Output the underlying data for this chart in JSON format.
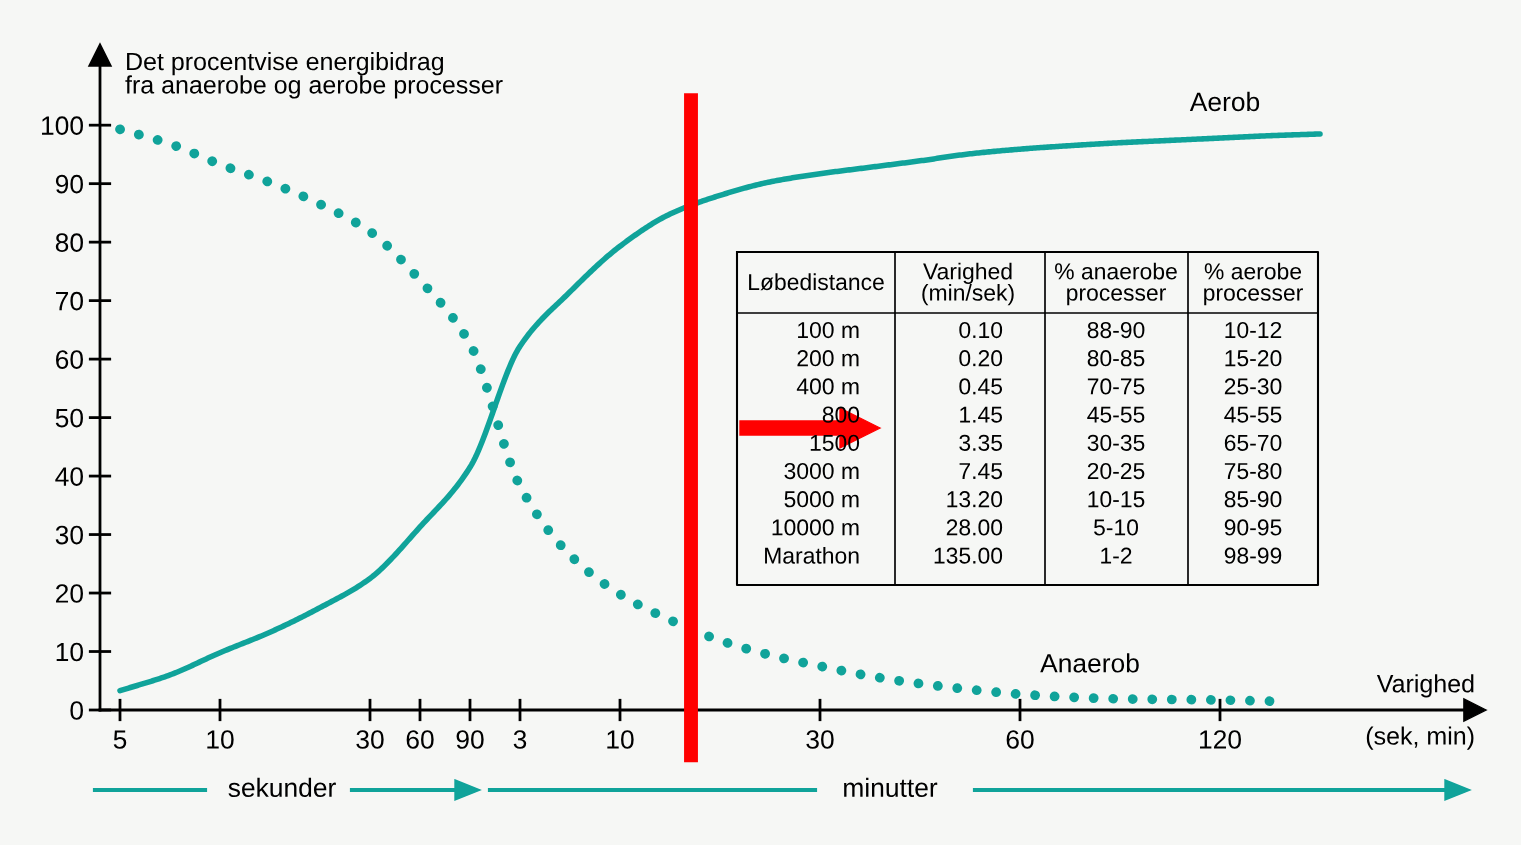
{
  "chart_data": [
    {
      "type": "line",
      "ylabel": "Det procentvise energibidrag\nfra anaerobe og aerobe processer",
      "xlabel": "Varighed\n(sek, min)",
      "ylim": [
        0,
        112
      ],
      "categories": [
        "5",
        null,
        "10",
        null,
        null,
        "30",
        "60",
        "90",
        "3",
        null,
        "10",
        null,
        null,
        null,
        "30",
        null,
        null,
        null,
        "60",
        null,
        null,
        null,
        "120",
        null,
        null
      ],
      "yticks": [
        0,
        10,
        20,
        30,
        40,
        50,
        60,
        70,
        80,
        90,
        100
      ],
      "grid": false,
      "legend": false,
      "marker": "none",
      "series": [
        {
          "name": "Aerob",
          "color": "#10a39a",
          "line_style": "solid",
          "values": [
            3.3,
            6,
            9.8,
            13.3,
            17.5,
            22.5,
            31.3,
            41.5,
            62.2,
            71.5,
            79.3,
            84.8,
            88,
            90.3,
            91.7,
            92.8,
            93.9,
            95.1,
            95.9,
            96.5,
            97,
            97.4,
            97.8,
            98.2,
            98.5
          ]
        },
        {
          "name": "Anaerob",
          "color": "#10a39a",
          "line_style": "dotted",
          "values": [
            99.3,
            96.8,
            93.3,
            90.2,
            86.5,
            81.8,
            73.5,
            62.6,
            38.3,
            26.5,
            19.8,
            15.4,
            11.9,
            9.4,
            7.5,
            5.8,
            4.5,
            3.5,
            2.7,
            2.2,
            1.9,
            1.8,
            1.7,
            1.5,
            null
          ]
        }
      ],
      "annotations": [
        "sekunder",
        "minutter"
      ]
    },
    {
      "type": "other",
      "annotations": [
        "Løbedistance",
        "Varighed\n(min/sek)",
        "% anaerobe\nprocesser",
        "% aerobe\nprocesser",
        "100 m",
        "0.10",
        "88-90",
        "10-12",
        "200 m",
        "0.20",
        "80-85",
        "15-20",
        "400 m",
        "0.45",
        "70-75",
        "25-30",
        "800",
        "1.45",
        "45-55",
        "45-55",
        "1500",
        "3.35",
        "30-35",
        "65-70",
        "3000 m",
        "7.45",
        "20-25",
        "75-80",
        "5000 m",
        "13.20",
        "10-15",
        "85-90",
        "10000 m",
        "28.00",
        "5-10",
        "90-95",
        "Marathon",
        "135.00",
        "1-2",
        "98-99"
      ]
    }
  ]
}
